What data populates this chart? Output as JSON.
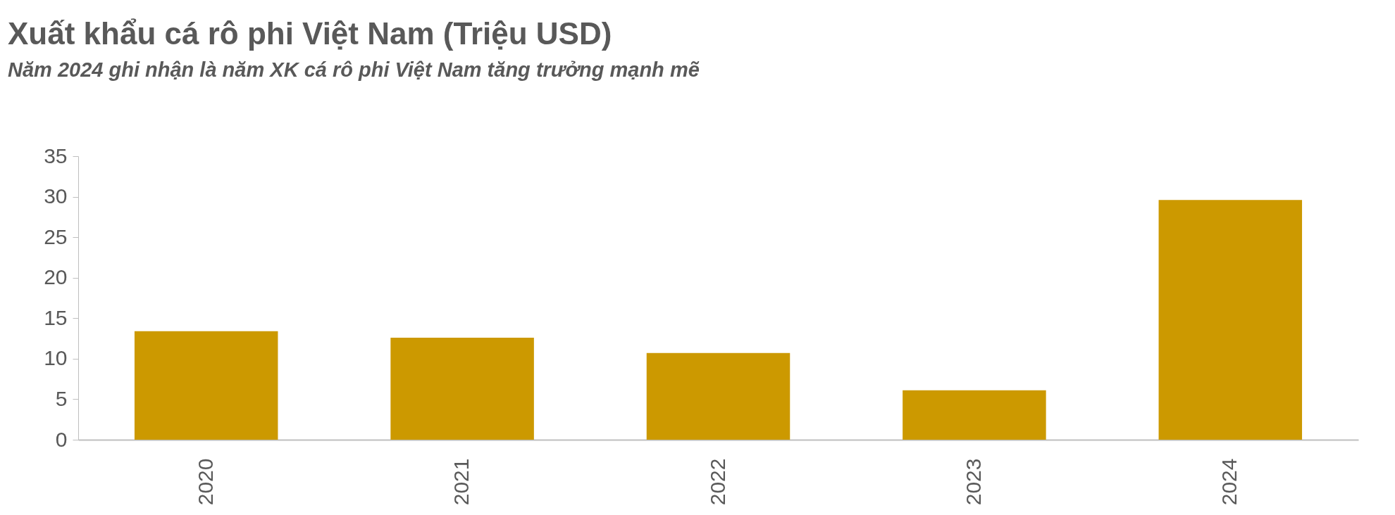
{
  "chart_data": {
    "type": "bar",
    "title": "Xuất khẩu cá rô phi Việt Nam (Triệu USD)",
    "subtitle": "Năm 2024 ghi nhận là năm XK cá rô phi Việt Nam tăng trưởng mạnh mẽ",
    "categories": [
      "2020",
      "2021",
      "2022",
      "2023",
      "2024"
    ],
    "values": [
      13.4,
      12.6,
      10.7,
      6.1,
      29.6
    ],
    "color": "#cc9900",
    "ylim": [
      0,
      35
    ],
    "yticks": [
      0,
      5,
      10,
      15,
      20,
      25,
      30,
      35
    ],
    "grid": false
  }
}
